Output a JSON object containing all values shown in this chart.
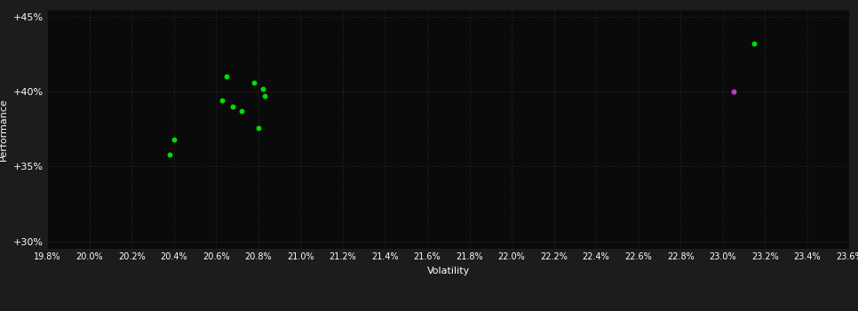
{
  "background_color": "#1c1c1c",
  "plot_bg_color": "#0a0a0a",
  "grid_color": "#2a2a2a",
  "text_color": "#ffffff",
  "xlabel": "Volatility",
  "ylabel": "Performance",
  "xlim": [
    0.198,
    0.236
  ],
  "ylim": [
    0.295,
    0.455
  ],
  "xtick_step": 0.002,
  "ytick_values": [
    0.3,
    0.35,
    0.4,
    0.45
  ],
  "green_points": [
    [
      0.2065,
      0.41
    ],
    [
      0.2063,
      0.394
    ],
    [
      0.2068,
      0.39
    ],
    [
      0.2072,
      0.387
    ],
    [
      0.2078,
      0.406
    ],
    [
      0.2082,
      0.402
    ],
    [
      0.2083,
      0.397
    ],
    [
      0.208,
      0.376
    ],
    [
      0.204,
      0.368
    ],
    [
      0.2038,
      0.358
    ],
    [
      0.2315,
      0.432
    ]
  ],
  "magenta_points": [
    [
      0.2305,
      0.4
    ]
  ],
  "green_color": "#00dd00",
  "magenta_color": "#cc33cc",
  "marker_size": 18
}
